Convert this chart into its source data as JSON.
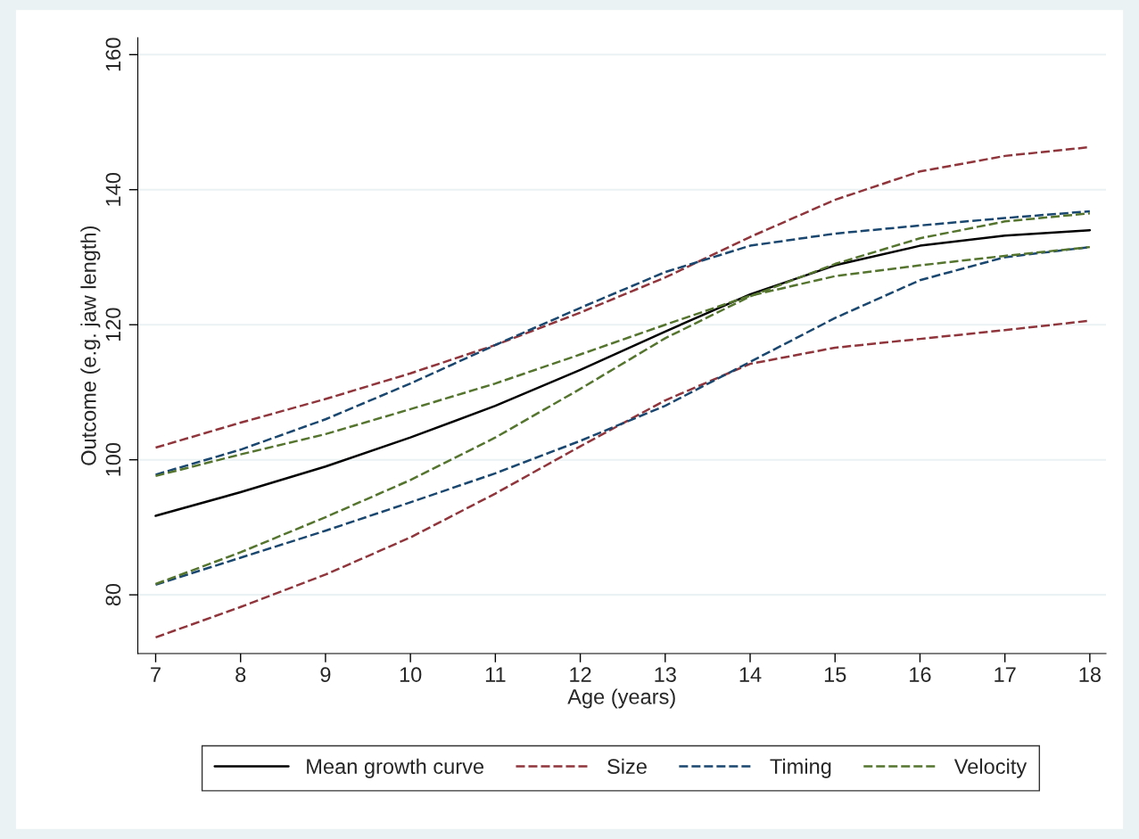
{
  "chart_data": {
    "type": "line",
    "xlabel": "Age (years)",
    "ylabel": "Outcome (e.g. jaw length)",
    "x": [
      7,
      8,
      9,
      10,
      11,
      12,
      13,
      14,
      15,
      16,
      17,
      18
    ],
    "series": [
      {
        "name": "Mean growth curve",
        "color": "#000000",
        "line_style": "solid",
        "values": [
          91.7,
          95.2,
          99,
          103.3,
          108,
          113.3,
          119,
          124.5,
          128.8,
          131.7,
          133.2,
          134
        ]
      },
      {
        "name": "Size",
        "color": "#90353b",
        "line_style": "dashed",
        "values": [
          101.8,
          105.5,
          109,
          112.8,
          117,
          121.8,
          127,
          133,
          138.5,
          142.7,
          145,
          146.3
        ]
      },
      {
        "color": "#90353b",
        "line_style": "dashed",
        "values": [
          73.7,
          78.2,
          83,
          88.5,
          95,
          102,
          108.8,
          114.2,
          116.6,
          117.9,
          119.2,
          120.6
        ]
      },
      {
        "name": "Timing",
        "color": "#1a476f",
        "line_style": "dashed",
        "values": [
          97.8,
          101.5,
          106,
          111.3,
          117,
          122.5,
          127.8,
          131.7,
          133.5,
          134.7,
          135.8,
          136.8
        ]
      },
      {
        "color": "#1a476f",
        "line_style": "dashed",
        "values": [
          81.5,
          85.5,
          89.5,
          93.7,
          98,
          102.8,
          108,
          114.5,
          121,
          126.6,
          130,
          131.5
        ]
      },
      {
        "name": "Velocity",
        "color": "#55752f",
        "line_style": "dashed",
        "values": [
          97.6,
          100.8,
          103.8,
          107.5,
          111.3,
          115.6,
          120,
          124.3,
          127.2,
          128.8,
          130.2,
          131.5
        ]
      },
      {
        "color": "#55752f",
        "line_style": "dashed",
        "values": [
          81.6,
          86.3,
          91.5,
          97,
          103.3,
          110.5,
          118,
          124.2,
          129,
          132.8,
          135.3,
          136.5
        ]
      }
    ],
    "xlim": [
      6.79,
      18.19
    ],
    "xticks": [
      7,
      8,
      9,
      10,
      11,
      12,
      13,
      14,
      15,
      16,
      17,
      18
    ],
    "ylim": [
      71.3,
      162.5
    ],
    "yticks": [
      80,
      100,
      120,
      140,
      160
    ],
    "grid": "y",
    "legend": "bottom"
  }
}
